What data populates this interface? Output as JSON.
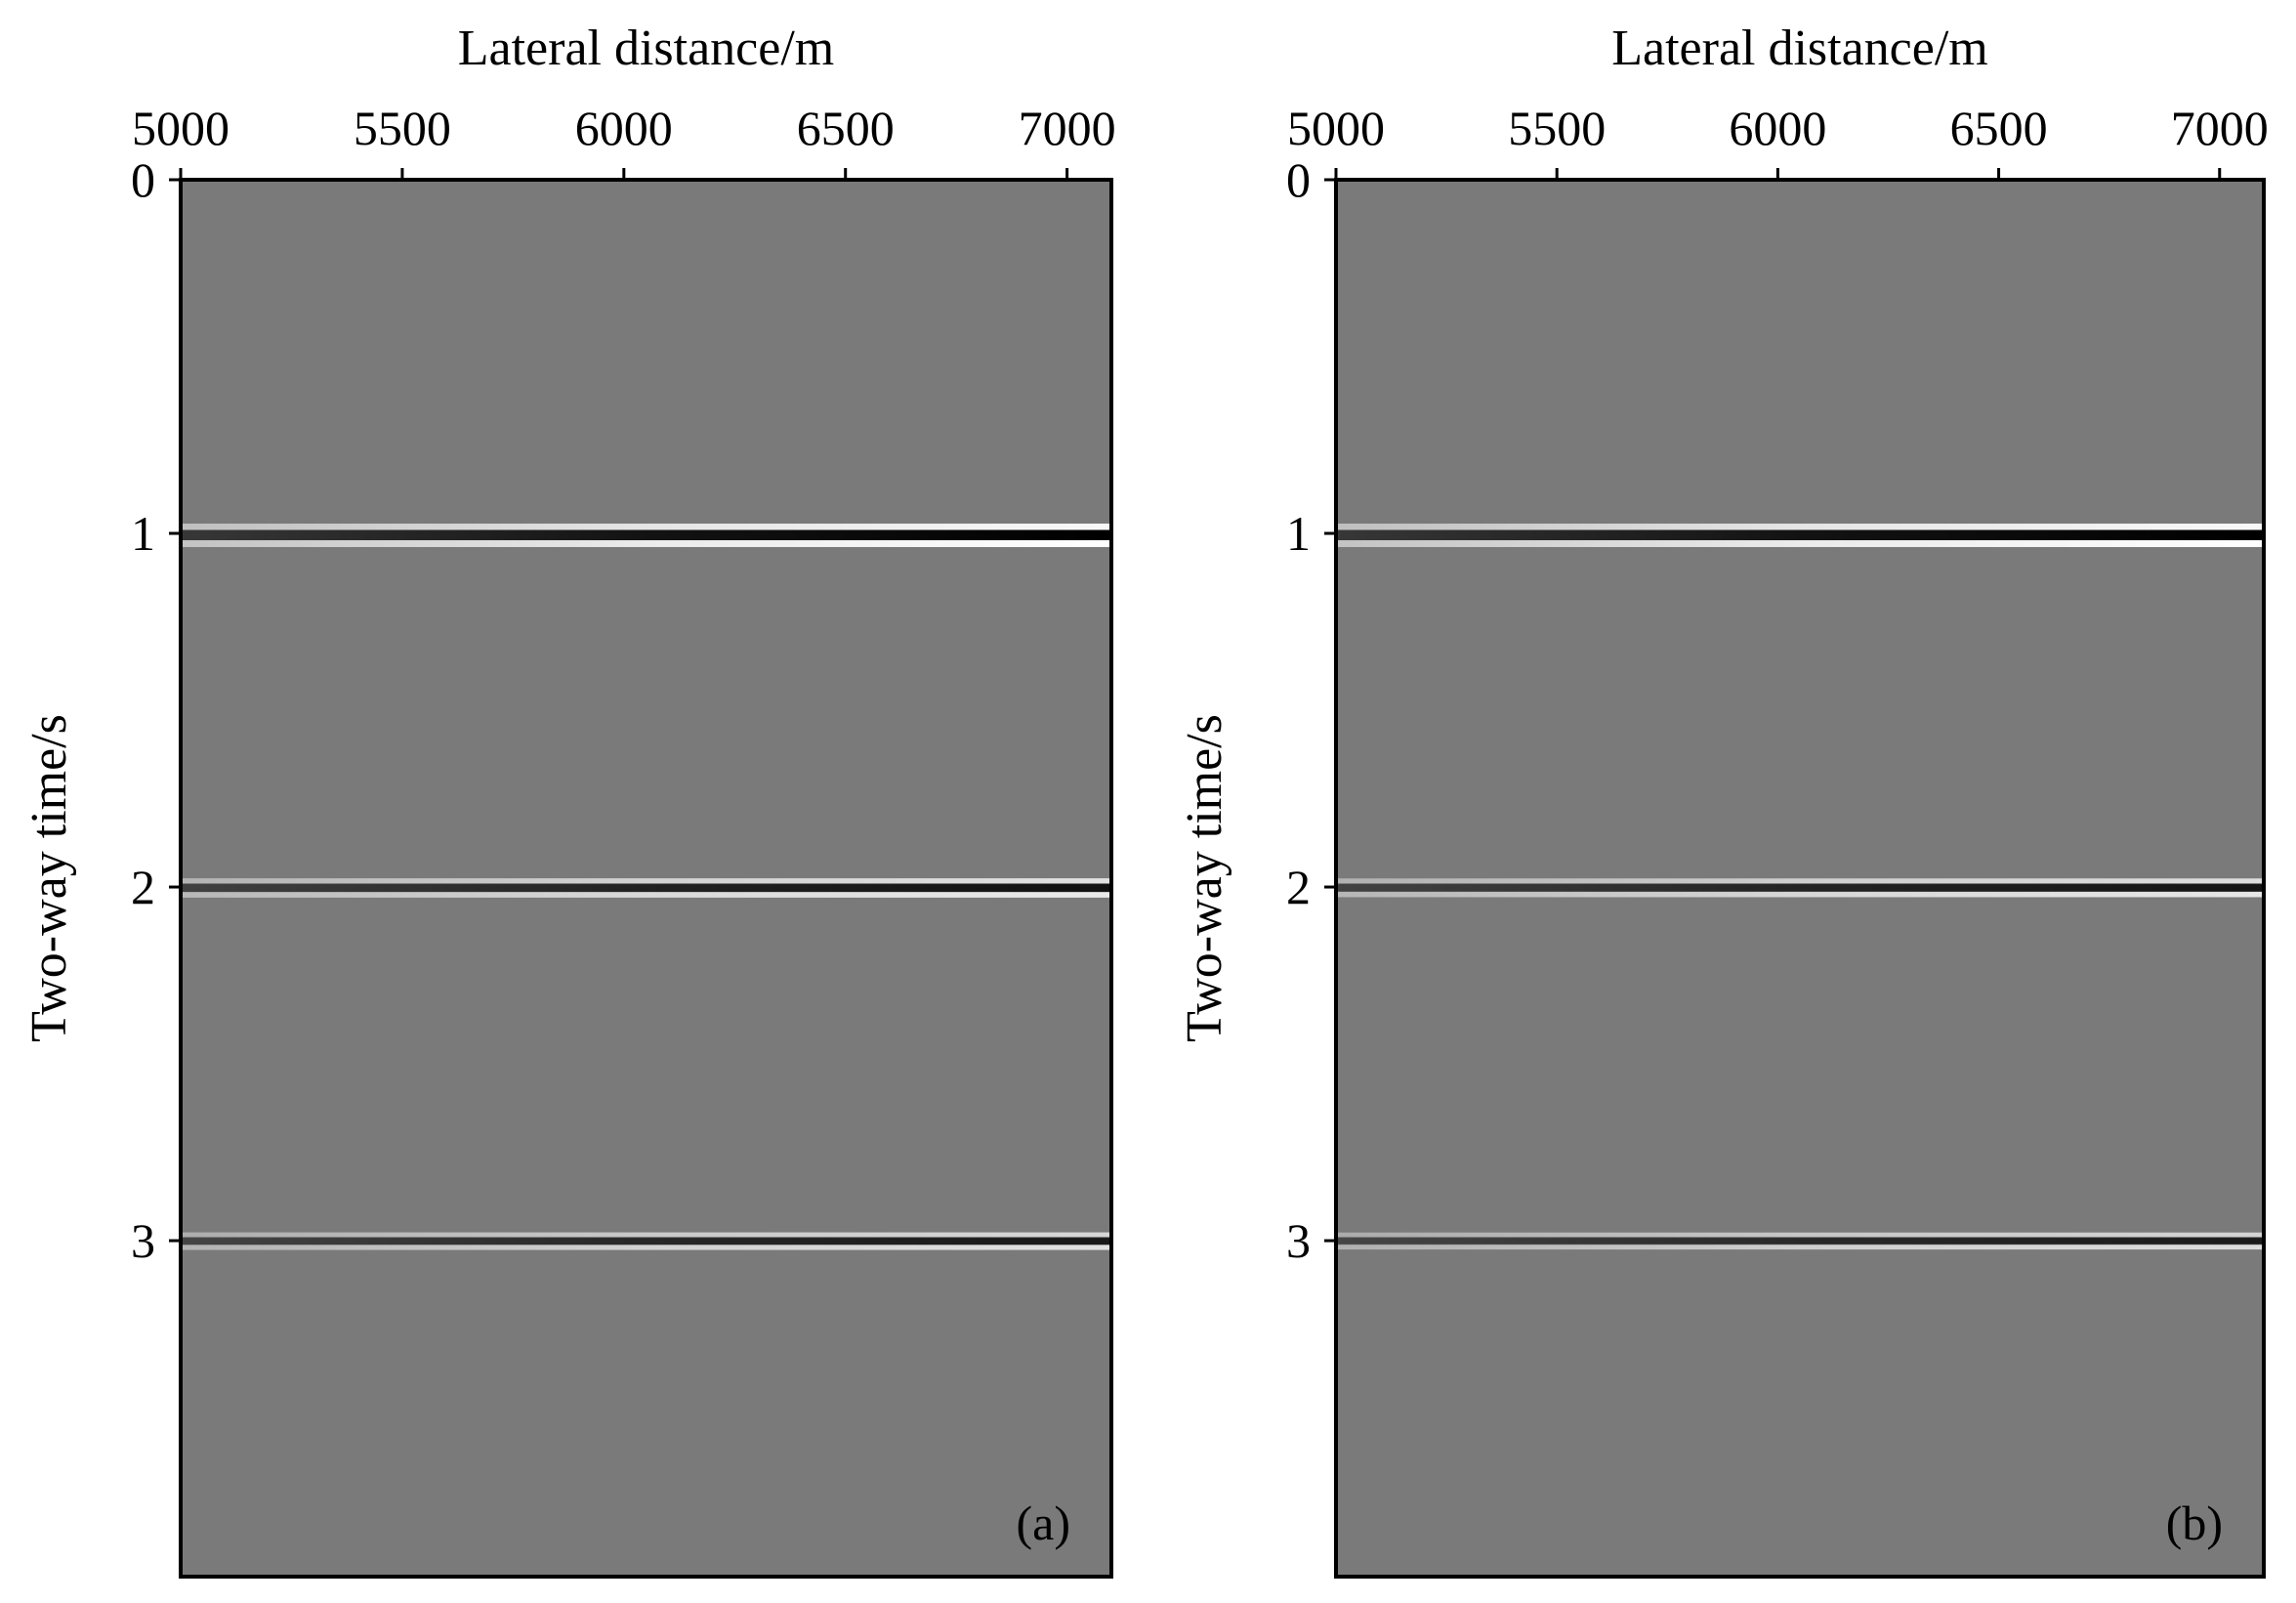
{
  "figure": {
    "panels": [
      {
        "label": "(a)"
      },
      {
        "label": "(b)"
      }
    ]
  },
  "colors": {
    "background": "#7a7a7a",
    "frame": "#000000",
    "peak": "#000000",
    "trough": "#ffffff"
  },
  "chart_data": [
    {
      "type": "heatmap",
      "panel_label": "(a)",
      "title": "",
      "xlabel": "Lateral distance/m",
      "ylabel": "Two-way time/s",
      "x_axis_position": "top",
      "xlim": [
        5000,
        7100
      ],
      "ylim": [
        0,
        3.95
      ],
      "y_inverted": true,
      "xticks": [
        5000,
        5500,
        6000,
        6500,
        7000
      ],
      "xtick_labels": [
        "5000",
        "5500",
        "6000",
        "6500",
        "7000"
      ],
      "yticks": [
        0,
        1,
        2,
        3
      ],
      "ytick_labels": [
        "0",
        "1",
        "2",
        "3"
      ],
      "colormap": "gray",
      "grid": false,
      "reflectors": [
        {
          "time": 1.0,
          "amplitude": 1.0
        },
        {
          "time": 2.0,
          "amplitude": 0.65
        },
        {
          "time": 3.0,
          "amplitude": 0.5
        }
      ]
    },
    {
      "type": "heatmap",
      "panel_label": "(b)",
      "title": "",
      "xlabel": "Lateral distance/m",
      "ylabel": "Two-way time/s",
      "x_axis_position": "top",
      "xlim": [
        5000,
        7100
      ],
      "ylim": [
        0,
        3.95
      ],
      "y_inverted": true,
      "xticks": [
        5000,
        5500,
        6000,
        6500,
        7000
      ],
      "xtick_labels": [
        "5000",
        "5500",
        "6000",
        "6500",
        "7000"
      ],
      "yticks": [
        0,
        1,
        2,
        3
      ],
      "ytick_labels": [
        "0",
        "1",
        "2",
        "3"
      ],
      "colormap": "gray",
      "grid": false,
      "reflectors": [
        {
          "time": 1.0,
          "amplitude": 1.0
        },
        {
          "time": 2.0,
          "amplitude": 0.6
        },
        {
          "time": 3.0,
          "amplitude": 0.45
        }
      ]
    }
  ]
}
